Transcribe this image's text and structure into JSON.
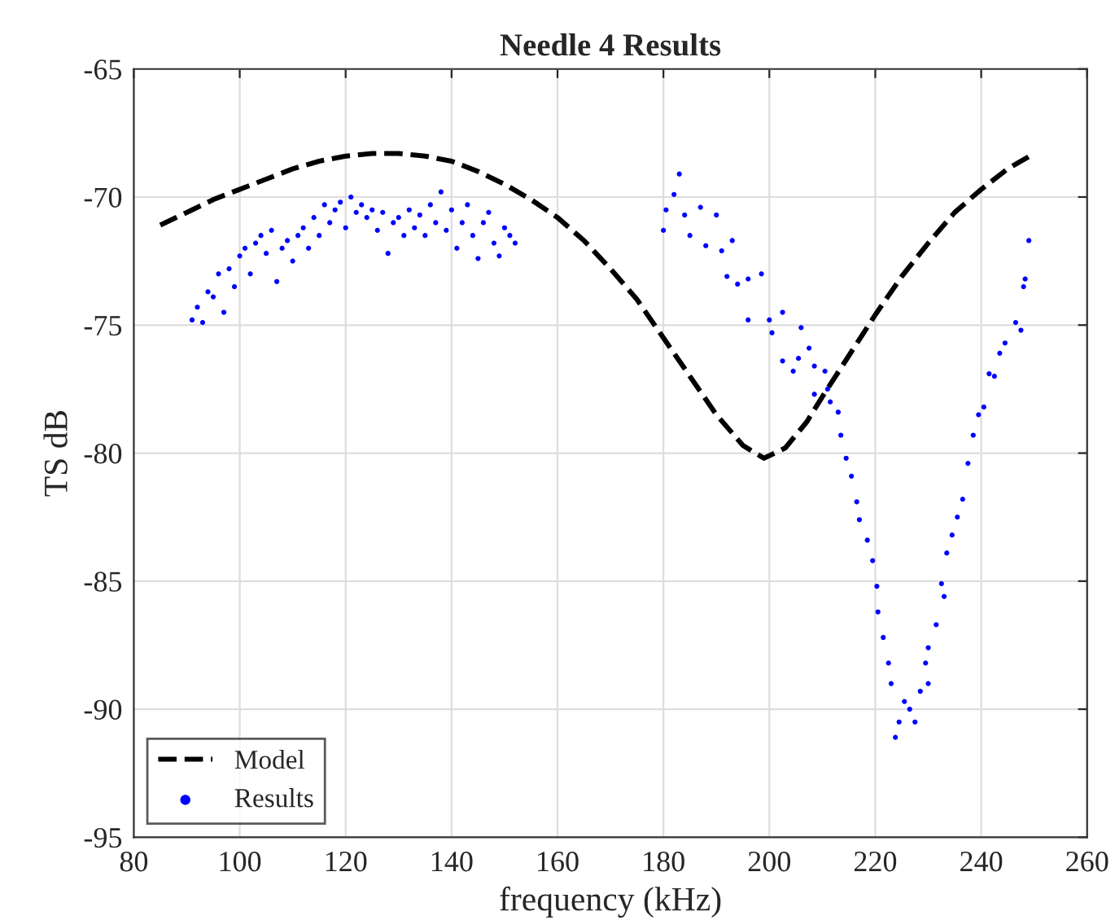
{
  "chart_data": {
    "type": "line",
    "title": "Needle 4 Results",
    "xlabel": "frequency (kHz)",
    "ylabel": "TS dB",
    "xlim": [
      80,
      260
    ],
    "xticks": [
      80,
      100,
      120,
      140,
      160,
      180,
      200,
      220,
      240,
      260
    ],
    "ylim": [
      -95,
      -65
    ],
    "yticks": [
      -95,
      -90,
      -85,
      -80,
      -75,
      -70,
      -65
    ],
    "grid": true,
    "legend": "bottom left",
    "series": [
      {
        "name": "Model",
        "color": "#000000",
        "line_style": "dashed",
        "marker": "none",
        "x": [
          85,
          90,
          95,
          100,
          105,
          110,
          115,
          120,
          125,
          130,
          135,
          140,
          145,
          150,
          155,
          160,
          165,
          170,
          175,
          180,
          185,
          190,
          195,
          199,
          203,
          207,
          210,
          215,
          220,
          225,
          230,
          235,
          240,
          245,
          250
        ],
        "values": [
          -71.1,
          -70.6,
          -70.1,
          -69.7,
          -69.3,
          -68.9,
          -68.6,
          -68.4,
          -68.3,
          -68.3,
          -68.4,
          -68.6,
          -69.0,
          -69.5,
          -70.1,
          -70.8,
          -71.7,
          -72.8,
          -74.0,
          -75.5,
          -77.0,
          -78.5,
          -79.7,
          -80.2,
          -79.8,
          -78.8,
          -77.8,
          -76.2,
          -74.6,
          -73.1,
          -71.8,
          -70.6,
          -69.7,
          -68.9,
          -68.3
        ]
      },
      {
        "name": "Results",
        "type": "scatter",
        "color": "#0000ff",
        "marker": "circle",
        "x": [
          91,
          92,
          93,
          94,
          95,
          96,
          97,
          98,
          99,
          100,
          101,
          102,
          103,
          104,
          105,
          106,
          107,
          108,
          109,
          110,
          111,
          112,
          113,
          114,
          115,
          116,
          117,
          118,
          119,
          120,
          121,
          122,
          123,
          124,
          125,
          126,
          127,
          128,
          129,
          130,
          131,
          132,
          133,
          134,
          135,
          136,
          137,
          138,
          139,
          140,
          141,
          142,
          143,
          144,
          145,
          146,
          147,
          148,
          149,
          150,
          151,
          152,
          180,
          180.5,
          182,
          183,
          184,
          185,
          187,
          188,
          190,
          191,
          193,
          192,
          194,
          196,
          198.5,
          196,
          200,
          200.5,
          202.5,
          202.5,
          204.5,
          205.5,
          206,
          207.5,
          208.5,
          208.5,
          210.5,
          211,
          211.5,
          213,
          213.5,
          214.5,
          215.5,
          216.5,
          217,
          218.5,
          219.5,
          220.3,
          220.5,
          221.5,
          222.5,
          223,
          223.8,
          224.5,
          225.5,
          226.5,
          227.5,
          228.5,
          230,
          229.5,
          230,
          231.5,
          233,
          232.5,
          233.5,
          234.5,
          235.5,
          236.5,
          237.5,
          238.5,
          239.5,
          240.5,
          241.5,
          242.5,
          243.5,
          244.5,
          246.5,
          247.5,
          248,
          248.3,
          249
        ],
        "values": [
          -74.8,
          -74.3,
          -74.9,
          -73.7,
          -73.9,
          -73.0,
          -74.5,
          -72.8,
          -73.5,
          -72.3,
          -72.0,
          -73.0,
          -71.8,
          -71.5,
          -72.2,
          -71.3,
          -73.3,
          -72.0,
          -71.7,
          -72.5,
          -71.5,
          -71.2,
          -72.0,
          -70.8,
          -71.5,
          -70.3,
          -71.0,
          -70.5,
          -70.2,
          -71.2,
          -70.0,
          -70.6,
          -70.3,
          -70.8,
          -70.5,
          -71.3,
          -70.6,
          -72.2,
          -71.0,
          -70.8,
          -71.5,
          -70.5,
          -71.2,
          -70.7,
          -71.5,
          -70.3,
          -71.0,
          -69.8,
          -71.3,
          -70.5,
          -72.0,
          -71.0,
          -70.3,
          -71.5,
          -72.4,
          -71.0,
          -70.6,
          -71.8,
          -72.3,
          -71.2,
          -71.5,
          -71.8,
          -71.3,
          -70.5,
          -69.9,
          -69.1,
          -70.7,
          -71.5,
          -70.4,
          -71.9,
          -70.7,
          -72.1,
          -71.7,
          -73.1,
          -73.4,
          -73.2,
          -73.0,
          -74.8,
          -74.8,
          -75.3,
          -74.5,
          -76.4,
          -76.8,
          -76.3,
          -75.1,
          -75.9,
          -76.6,
          -77.7,
          -76.8,
          -77.5,
          -78.0,
          -78.4,
          -79.3,
          -80.2,
          -80.9,
          -81.9,
          -82.6,
          -83.4,
          -84.2,
          -85.2,
          -86.2,
          -87.2,
          -88.2,
          -89.0,
          -91.1,
          -90.5,
          -89.7,
          -90.0,
          -90.5,
          -89.3,
          -89.0,
          -88.2,
          -87.6,
          -86.7,
          -85.6,
          -85.1,
          -83.9,
          -83.2,
          -82.5,
          -81.8,
          -80.4,
          -79.3,
          -78.5,
          -78.2,
          -76.9,
          -77.0,
          -76.1,
          -75.7,
          -74.9,
          -75.2,
          -73.5,
          -73.2,
          -71.7
        ]
      }
    ]
  }
}
